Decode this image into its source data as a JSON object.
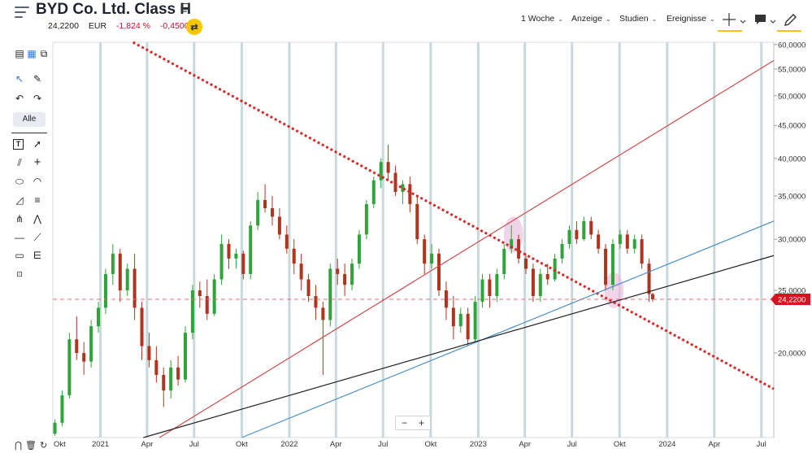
{
  "header": {
    "title": "BYD Co. Ltd. Class H",
    "price": "24,2200",
    "currency": "EUR",
    "change_pct": "-1,824 %",
    "change_abs": "-0,4500",
    "menus": [
      "1 Woche",
      "Anzeige",
      "Studien",
      "Ereignisse"
    ]
  },
  "toolbar": {
    "alle_label": "Alle",
    "zoom_minus": "−",
    "zoom_plus": "+"
  },
  "colors": {
    "up": "#2fa43a",
    "down": "#b0341e",
    "accent": "#f6c600",
    "neg_text": "#c8102e",
    "trend_red": "#d24a4a",
    "trend_blue": "#4a90c8",
    "trend_black": "#222222",
    "trend_dotted": "#d42a2a",
    "grid": "#c8d8dc",
    "price_marker": "#d4141e"
  },
  "chart_data": {
    "type": "candlestick",
    "title": "BYD Co. Ltd. Class H",
    "y_scale": "log",
    "ylim": [
      14800,
      60500
    ],
    "y_ticks": [
      20000,
      25000,
      30000,
      35000,
      40000,
      45000,
      50000,
      55000,
      60000
    ],
    "y_tick_labels": [
      "20,0000",
      "25,0000",
      "30,0000",
      "35,0000",
      "40,0000",
      "45,0000",
      "50,0000",
      "55,0000",
      "60,0000"
    ],
    "x_tick_labels": [
      "Okt",
      "2021",
      "Apr",
      "Jul",
      "Okt",
      "2022",
      "Apr",
      "Jul",
      "Okt",
      "2023",
      "Apr",
      "Jul",
      "Okt",
      "2024",
      "Apr",
      "Jul"
    ],
    "x_tick_dates": [
      "2020-10-01",
      "2021-01-01",
      "2021-04-01",
      "2021-07-01",
      "2021-10-01",
      "2022-01-01",
      "2022-04-01",
      "2022-07-01",
      "2022-10-01",
      "2023-01-01",
      "2023-04-01",
      "2023-07-01",
      "2023-10-01",
      "2024-01-01",
      "2024-04-01",
      "2024-07-01"
    ],
    "grid": true,
    "last_price": 24220,
    "last_price_label": "24,2200",
    "candles": [
      [
        "2020-10-05",
        15000,
        15800,
        14900,
        15600
      ],
      [
        "2020-10-19",
        15600,
        17500,
        15400,
        17200
      ],
      [
        "2020-11-02",
        17200,
        21500,
        17000,
        21000
      ],
      [
        "2020-11-16",
        21000,
        22800,
        19500,
        20000
      ],
      [
        "2020-11-30",
        20000,
        20800,
        18500,
        19400
      ],
      [
        "2020-12-14",
        19400,
        22500,
        19000,
        22000
      ],
      [
        "2020-12-28",
        22000,
        24000,
        21500,
        23500
      ],
      [
        "2021-01-11",
        23500,
        27000,
        23000,
        26500
      ],
      [
        "2021-01-25",
        26500,
        29500,
        25500,
        28500
      ],
      [
        "2021-02-08",
        28500,
        29000,
        24000,
        25000
      ],
      [
        "2021-02-22",
        25000,
        27500,
        24500,
        27000
      ],
      [
        "2021-03-08",
        27000,
        28500,
        22500,
        23500
      ],
      [
        "2021-03-22",
        23500,
        24000,
        19500,
        20500
      ],
      [
        "2021-04-05",
        20500,
        21500,
        19000,
        19500
      ],
      [
        "2021-04-19",
        19500,
        20500,
        18000,
        18500
      ],
      [
        "2021-05-03",
        18500,
        19000,
        16500,
        17500
      ],
      [
        "2021-05-17",
        17500,
        19500,
        17000,
        19000
      ],
      [
        "2021-05-31",
        19000,
        19800,
        17800,
        18200
      ],
      [
        "2021-06-14",
        18200,
        22000,
        18000,
        21500
      ],
      [
        "2021-06-28",
        21500,
        25500,
        21000,
        25000
      ],
      [
        "2021-07-12",
        25000,
        25800,
        23500,
        24500
      ],
      [
        "2021-07-26",
        24500,
        26000,
        22500,
        23000
      ],
      [
        "2021-08-09",
        23000,
        26500,
        22800,
        26000
      ],
      [
        "2021-08-23",
        26000,
        30500,
        25500,
        29500
      ],
      [
        "2021-09-06",
        29500,
        30000,
        27000,
        28000
      ],
      [
        "2021-09-20",
        28000,
        29000,
        27000,
        28500
      ],
      [
        "2021-10-04",
        28500,
        28800,
        26000,
        26500
      ],
      [
        "2021-10-18",
        26500,
        32000,
        26000,
        31500
      ],
      [
        "2021-11-01",
        31500,
        35500,
        31000,
        34500
      ],
      [
        "2021-11-15",
        34500,
        36500,
        33000,
        33500
      ],
      [
        "2021-11-29",
        33500,
        35000,
        31500,
        32500
      ],
      [
        "2021-12-13",
        32500,
        33500,
        30000,
        30500
      ],
      [
        "2021-12-27",
        30500,
        31500,
        28500,
        29000
      ],
      [
        "2022-01-10",
        29000,
        30000,
        26500,
        27500
      ],
      [
        "2022-01-24",
        27500,
        28500,
        25000,
        26000
      ],
      [
        "2022-02-07",
        26000,
        26500,
        24000,
        24500
      ],
      [
        "2022-02-21",
        24500,
        25500,
        22500,
        23500
      ],
      [
        "2022-03-07",
        23500,
        24000,
        18500,
        22500
      ],
      [
        "2022-03-21",
        22500,
        27500,
        22000,
        27000
      ],
      [
        "2022-04-04",
        27000,
        28000,
        25500,
        26500
      ],
      [
        "2022-04-18",
        26500,
        27500,
        24500,
        25500
      ],
      [
        "2022-05-02",
        25500,
        28000,
        25000,
        27500
      ],
      [
        "2022-05-16",
        27500,
        31000,
        27000,
        30500
      ],
      [
        "2022-05-30",
        30500,
        34500,
        30000,
        34000
      ],
      [
        "2022-06-13",
        34000,
        37500,
        33500,
        37000
      ],
      [
        "2022-06-27",
        37000,
        40000,
        36000,
        39500
      ],
      [
        "2022-07-11",
        39500,
        42000,
        37000,
        38000
      ],
      [
        "2022-07-25",
        38000,
        39000,
        35000,
        35500
      ],
      [
        "2022-08-08",
        35500,
        37000,
        34000,
        36500
      ],
      [
        "2022-08-22",
        36500,
        37500,
        33000,
        34000
      ],
      [
        "2022-09-05",
        34000,
        35000,
        29500,
        30000
      ],
      [
        "2022-09-19",
        30000,
        30500,
        26500,
        27500
      ],
      [
        "2022-10-03",
        27500,
        29500,
        27000,
        28500
      ],
      [
        "2022-10-17",
        28500,
        29000,
        24500,
        25000
      ],
      [
        "2022-10-31",
        25000,
        25800,
        22500,
        23500
      ],
      [
        "2022-11-14",
        23500,
        24500,
        21000,
        22000
      ],
      [
        "2022-11-28",
        22000,
        23500,
        21500,
        23000
      ],
      [
        "2022-12-12",
        23000,
        23500,
        20500,
        21000
      ],
      [
        "2022-12-26",
        21000,
        24500,
        20800,
        24000
      ],
      [
        "2023-01-09",
        24000,
        26500,
        23500,
        26000
      ],
      [
        "2023-01-23",
        26000,
        26500,
        23500,
        24500
      ],
      [
        "2023-02-06",
        24500,
        27000,
        24000,
        26500
      ],
      [
        "2023-02-20",
        26500,
        29500,
        26000,
        29000
      ],
      [
        "2023-03-06",
        29000,
        31500,
        28500,
        30000
      ],
      [
        "2023-03-20",
        30000,
        30500,
        27500,
        28000
      ],
      [
        "2023-04-03",
        28000,
        28500,
        26500,
        27000
      ],
      [
        "2023-04-17",
        27000,
        27500,
        24000,
        24500
      ],
      [
        "2023-05-01",
        24500,
        27000,
        24000,
        26500
      ],
      [
        "2023-05-15",
        26500,
        27500,
        25500,
        26000
      ],
      [
        "2023-05-29",
        26000,
        28500,
        25800,
        28000
      ],
      [
        "2023-06-12",
        28000,
        30000,
        27500,
        29500
      ],
      [
        "2023-06-26",
        29500,
        31500,
        29000,
        31000
      ],
      [
        "2023-07-10",
        31000,
        32000,
        29500,
        30000
      ],
      [
        "2023-07-24",
        30000,
        32500,
        29800,
        32000
      ],
      [
        "2023-08-07",
        32000,
        32500,
        30000,
        30500
      ],
      [
        "2023-08-21",
        30500,
        31000,
        28500,
        29000
      ],
      [
        "2023-09-04",
        29000,
        29500,
        25000,
        25500
      ],
      [
        "2023-09-18",
        25500,
        30000,
        25000,
        29500
      ],
      [
        "2023-10-02",
        29500,
        31000,
        29000,
        30500
      ],
      [
        "2023-10-16",
        30500,
        31000,
        28500,
        29000
      ],
      [
        "2023-10-30",
        29000,
        30500,
        28500,
        30000
      ],
      [
        "2023-11-13",
        30000,
        30500,
        27000,
        27500
      ],
      [
        "2023-11-27",
        27500,
        28000,
        24000,
        24670
      ],
      [
        "2023-12-04",
        24670,
        24800,
        24000,
        24220
      ]
    ],
    "trendlines": [
      {
        "color": "trend_dotted",
        "style": "dotted",
        "from": [
          "2021-03-05",
          60500
        ],
        "to": [
          "2024-07-25",
          17600
        ]
      },
      {
        "color": "trend_red",
        "style": "solid",
        "from": [
          "2021-04-25",
          14800
        ],
        "to": [
          "2024-07-25",
          56700
        ]
      },
      {
        "color": "trend_blue",
        "style": "solid",
        "from": [
          "2021-10-01",
          14800
        ],
        "to": [
          "2024-07-25",
          32000
        ]
      },
      {
        "color": "trend_black",
        "style": "solid",
        "from": [
          "2021-03-25",
          14800
        ],
        "to": [
          "2024-07-25",
          28300
        ]
      }
    ],
    "highlights": [
      {
        "date": "2023-03-10",
        "value": 30500
      },
      {
        "date": "2023-09-20",
        "value": 25000
      }
    ]
  }
}
